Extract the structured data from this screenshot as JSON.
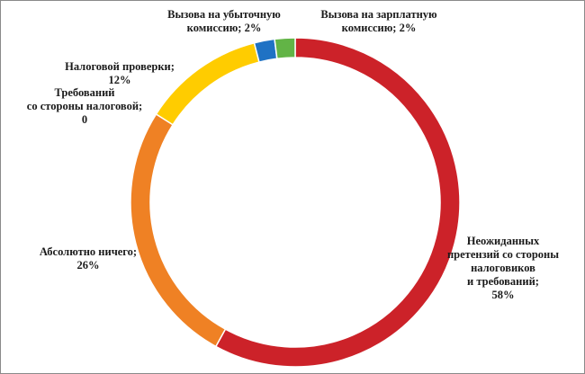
{
  "chart_data": {
    "type": "pie",
    "donut": true,
    "title": "",
    "legend": "none",
    "start_angle_deg": 0,
    "direction": "clockwise",
    "series": [
      {
        "values": [
          58,
          26,
          0,
          12,
          2,
          2
        ],
        "labels": [
          "Неожиданных\nпретензий со стороны\nналоговиков\nи требований;\n58%",
          "Абсолютно ничего;\n26%",
          "Требований\nсо стороны налоговой;\n0",
          "Налоговой проверки;\n12%",
          "Вызова на убыточную\nкомиссию; 2%",
          "Вызова на зарплатную\nкомиссию; 2%"
        ],
        "colors": [
          "#cc2229",
          "#ef8124",
          "#c0c0c0",
          "#ffcc00",
          "#1f72c4",
          "#62b446"
        ]
      }
    ]
  }
}
